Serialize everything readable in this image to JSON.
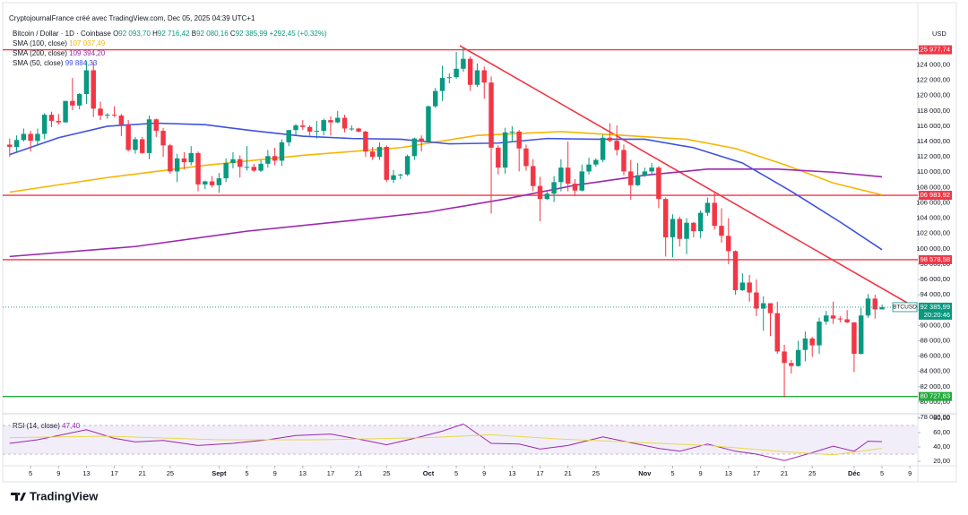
{
  "chart_data": {
    "type": "candlestick",
    "title": "CryptojournalFrance créé avec TradingView.com, Dec 05, 2025 04:39 UTC+1",
    "symbol": "Bitcoin / Dollar · 1D · Coinbase",
    "ohlc_legend": [
      {
        "label": "O",
        "value": "92 093,70"
      },
      {
        "label": "H",
        "value": "92 716,42"
      },
      {
        "label": "B",
        "value": "92 080,16"
      },
      {
        "label": "C",
        "value": "92 385,99"
      }
    ],
    "change": "+292,45 (+0,32%)",
    "currency": "USD",
    "brand": "TradingView",
    "up_color": "#089981",
    "down_color": "#f23645",
    "x": [
      "2025-08-02",
      "2025-08-03",
      "2025-08-04",
      "2025-08-05",
      "2025-08-06",
      "2025-08-07",
      "2025-08-08",
      "2025-08-09",
      "2025-08-10",
      "2025-08-11",
      "2025-08-12",
      "2025-08-13",
      "2025-08-14",
      "2025-08-15",
      "2025-08-16",
      "2025-08-17",
      "2025-08-18",
      "2025-08-19",
      "2025-08-20",
      "2025-08-21",
      "2025-08-22",
      "2025-08-23",
      "2025-08-24",
      "2025-08-25",
      "2025-08-26",
      "2025-08-27",
      "2025-08-28",
      "2025-08-29",
      "2025-08-30",
      "2025-08-31",
      "2025-09-01",
      "2025-09-02",
      "2025-09-03",
      "2025-09-04",
      "2025-09-05",
      "2025-09-06",
      "2025-09-07",
      "2025-09-08",
      "2025-09-09",
      "2025-09-10",
      "2025-09-11",
      "2025-09-12",
      "2025-09-13",
      "2025-09-14",
      "2025-09-15",
      "2025-09-16",
      "2025-09-17",
      "2025-09-18",
      "2025-09-19",
      "2025-09-20",
      "2025-09-21",
      "2025-09-22",
      "2025-09-23",
      "2025-09-24",
      "2025-09-25",
      "2025-09-26",
      "2025-09-27",
      "2025-09-28",
      "2025-09-29",
      "2025-09-30",
      "2025-10-01",
      "2025-10-02",
      "2025-10-03",
      "2025-10-04",
      "2025-10-05",
      "2025-10-06",
      "2025-10-07",
      "2025-10-08",
      "2025-10-09",
      "2025-10-10",
      "2025-10-11",
      "2025-10-12",
      "2025-10-13",
      "2025-10-14",
      "2025-10-15",
      "2025-10-16",
      "2025-10-17",
      "2025-10-18",
      "2025-10-19",
      "2025-10-20",
      "2025-10-21",
      "2025-10-22",
      "2025-10-23",
      "2025-10-24",
      "2025-10-25",
      "2025-10-26",
      "2025-10-27",
      "2025-10-28",
      "2025-10-29",
      "2025-10-30",
      "2025-10-31",
      "2025-11-01",
      "2025-11-02",
      "2025-11-03",
      "2025-11-04",
      "2025-11-05",
      "2025-11-06",
      "2025-11-07",
      "2025-11-08",
      "2025-11-09",
      "2025-11-10",
      "2025-11-11",
      "2025-11-12",
      "2025-11-13",
      "2025-11-14",
      "2025-11-15",
      "2025-11-16",
      "2025-11-17",
      "2025-11-18",
      "2025-11-19",
      "2025-11-20",
      "2025-11-21",
      "2025-11-22",
      "2025-11-23",
      "2025-11-24",
      "2025-11-25",
      "2025-11-26",
      "2025-11-27",
      "2025-11-28",
      "2025-11-29",
      "2025-11-30",
      "2025-12-01",
      "2025-12-02",
      "2025-12-03",
      "2025-12-04",
      "2025-12-05"
    ],
    "open": [
      113600,
      113300,
      114200,
      115000,
      114100,
      115000,
      117500,
      116700,
      116500,
      119300,
      118700,
      120200,
      123300,
      118300,
      117400,
      117500,
      117400,
      116200,
      112900,
      114300,
      112500,
      116900,
      115400,
      113500,
      110100,
      111800,
      111300,
      112500,
      108400,
      108800,
      108300,
      109200,
      111200,
      111700,
      110700,
      110700,
      110200,
      111100,
      112100,
      111500,
      113900,
      115500,
      116100,
      115900,
      115300,
      115400,
      116800,
      116500,
      117100,
      115700,
      115700,
      115300,
      112700,
      112000,
      113300,
      109000,
      109600,
      109700,
      112100,
      114400,
      114000,
      118600,
      120600,
      122300,
      122400,
      123500,
      124800,
      121400,
      123300,
      121700,
      113200,
      110600,
      115200,
      115300,
      113100,
      110800,
      108200,
      106500,
      107200,
      108700,
      110600,
      108500,
      107600,
      110100,
      111000,
      111600,
      114500,
      114100,
      112900,
      110100,
      108300,
      109600,
      110100,
      110600,
      106500,
      101500,
      103900,
      101300,
      103400,
      102300,
      104700,
      106000,
      103000,
      101700,
      99700,
      94600,
      95600,
      94300,
      92200,
      92900,
      91600,
      86600,
      85100,
      84700,
      86800,
      88300,
      87400,
      90500,
      91300,
      90900,
      90800,
      90400,
      86300,
      91300,
      93500,
      92093.7
    ],
    "high": [
      114400,
      114800,
      115700,
      115400,
      115700,
      117700,
      117900,
      117600,
      119300,
      122300,
      120300,
      124500,
      124400,
      119200,
      117700,
      118600,
      117600,
      116800,
      114600,
      114600,
      117400,
      117000,
      115800,
      113700,
      112400,
      112600,
      113400,
      112700,
      108900,
      109500,
      109900,
      111800,
      112600,
      112200,
      113400,
      111100,
      111600,
      112900,
      113200,
      114300,
      115500,
      116300,
      116800,
      116100,
      116700,
      117000,
      117300,
      118000,
      117500,
      116100,
      115800,
      115400,
      113300,
      113900,
      113500,
      110300,
      109800,
      112300,
      114500,
      114800,
      118700,
      121000,
      123900,
      122900,
      125700,
      126200,
      125100,
      124200,
      123800,
      122500,
      113500,
      115800,
      116000,
      115500,
      113600,
      111700,
      109400,
      107500,
      109500,
      111700,
      114000,
      109100,
      111000,
      111900,
      111800,
      114900,
      116400,
      116100,
      113600,
      111600,
      111200,
      110600,
      111200,
      110800,
      106700,
      104500,
      104200,
      104000,
      103500,
      105000,
      106700,
      107400,
      105300,
      104000,
      99800,
      96800,
      96600,
      96000,
      93800,
      92900,
      93100,
      87500,
      85500,
      88000,
      89200,
      88500,
      91000,
      91900,
      93100,
      91200,
      92000,
      90400,
      92300,
      94100,
      94000,
      92716.42
    ],
    "low": [
      112000,
      112700,
      114000,
      112700,
      113400,
      114300,
      115900,
      116200,
      116500,
      118100,
      118200,
      118900,
      117200,
      116800,
      117000,
      117200,
      114700,
      112700,
      112400,
      112400,
      111700,
      114600,
      112000,
      109800,
      108700,
      110400,
      110900,
      107500,
      107800,
      108000,
      107300,
      108700,
      110500,
      109300,
      110200,
      110000,
      110000,
      110600,
      110900,
      110800,
      113400,
      114800,
      115500,
      114800,
      114400,
      114800,
      114800,
      116400,
      115200,
      115400,
      115200,
      112000,
      111600,
      111600,
      108700,
      108600,
      109100,
      109500,
      111600,
      112700,
      113900,
      118400,
      119300,
      121600,
      122200,
      123100,
      120600,
      121100,
      119600,
      104600,
      109700,
      109800,
      113900,
      110100,
      110200,
      107500,
      103600,
      106400,
      106100,
      107500,
      107500,
      106900,
      107500,
      109700,
      110700,
      111300,
      113900,
      112200,
      109600,
      106400,
      108200,
      109400,
      109600,
      105300,
      99000,
      98900,
      100300,
      99300,
      101500,
      101400,
      104300,
      102500,
      100800,
      98000,
      94000,
      94500,
      93100,
      91200,
      89300,
      88600,
      86300,
      80600,
      83700,
      84600,
      85300,
      85900,
      86300,
      90100,
      90200,
      90400,
      90300,
      83900,
      86200,
      91000,
      90900,
      92080.16
    ],
    "close": [
      113300,
      114200,
      115000,
      114100,
      115000,
      117500,
      116700,
      116500,
      119300,
      118700,
      120200,
      123300,
      118300,
      117400,
      117500,
      117400,
      116200,
      112900,
      114300,
      112500,
      116900,
      115400,
      113500,
      110100,
      111800,
      111300,
      112500,
      108400,
      108800,
      108300,
      109200,
      111200,
      111700,
      110700,
      110700,
      110200,
      111100,
      112100,
      111500,
      113900,
      115500,
      116100,
      115900,
      115300,
      115400,
      116800,
      116500,
      117100,
      115700,
      115700,
      115300,
      112700,
      112000,
      113300,
      109000,
      109600,
      109700,
      112100,
      114400,
      114000,
      118600,
      120600,
      122300,
      122400,
      123500,
      124800,
      121400,
      123300,
      121700,
      113200,
      110600,
      115200,
      115300,
      113100,
      110800,
      108200,
      106500,
      107200,
      108700,
      110600,
      108500,
      107600,
      110100,
      111000,
      111600,
      114500,
      114100,
      112900,
      110100,
      108300,
      109600,
      110100,
      110600,
      106500,
      101500,
      103900,
      101300,
      103400,
      102300,
      104700,
      106000,
      103000,
      101700,
      99700,
      94600,
      95600,
      94300,
      92200,
      92900,
      91600,
      86600,
      85100,
      84700,
      86800,
      88300,
      87400,
      90500,
      91300,
      90900,
      90800,
      90400,
      86300,
      91300,
      93500,
      92100,
      92385.99
    ],
    "xlim": [
      "2025-08-01",
      "2025-12-10"
    ],
    "xticks": [
      {
        "value": "2025-08-05",
        "label": "5"
      },
      {
        "value": "2025-08-09",
        "label": "9"
      },
      {
        "value": "2025-08-13",
        "label": "13"
      },
      {
        "value": "2025-08-17",
        "label": "17"
      },
      {
        "value": "2025-08-21",
        "label": "21"
      },
      {
        "value": "2025-08-25",
        "label": "25"
      },
      {
        "value": "2025-09-01",
        "label": "Sept"
      },
      {
        "value": "2025-09-05",
        "label": "5"
      },
      {
        "value": "2025-09-09",
        "label": "9"
      },
      {
        "value": "2025-09-13",
        "label": "13"
      },
      {
        "value": "2025-09-17",
        "label": "17"
      },
      {
        "value": "2025-09-21",
        "label": "21"
      },
      {
        "value": "2025-09-25",
        "label": "25"
      },
      {
        "value": "2025-10-01",
        "label": "Oct"
      },
      {
        "value": "2025-10-05",
        "label": "5"
      },
      {
        "value": "2025-10-09",
        "label": "9"
      },
      {
        "value": "2025-10-13",
        "label": "13"
      },
      {
        "value": "2025-10-17",
        "label": "17"
      },
      {
        "value": "2025-10-21",
        "label": "21"
      },
      {
        "value": "2025-10-25",
        "label": "25"
      },
      {
        "value": "2025-11-01",
        "label": "Nov"
      },
      {
        "value": "2025-11-05",
        "label": "5"
      },
      {
        "value": "2025-11-09",
        "label": "9"
      },
      {
        "value": "2025-11-13",
        "label": "13"
      },
      {
        "value": "2025-11-17",
        "label": "17"
      },
      {
        "value": "2025-11-21",
        "label": "21"
      },
      {
        "value": "2025-11-25",
        "label": "25"
      },
      {
        "value": "2025-12-01",
        "label": "Déc"
      },
      {
        "value": "2025-12-05",
        "label": "5"
      },
      {
        "value": "2025-12-09",
        "label": "9"
      }
    ],
    "ylim": [
      78000,
      128500
    ],
    "yticks": [
      {
        "value": 78000,
        "label": "78 000,00"
      },
      {
        "value": 80000,
        "label": "80 000,00"
      },
      {
        "value": 82000,
        "label": "82 000,00"
      },
      {
        "value": 84000,
        "label": "84 000,00"
      },
      {
        "value": 86000,
        "label": "86 000,00"
      },
      {
        "value": 88000,
        "label": "88 000,00"
      },
      {
        "value": 90000,
        "label": "90 000,00"
      },
      {
        "value": 92000,
        "label": "92 000,00"
      },
      {
        "value": 94000,
        "label": "94 000,00"
      },
      {
        "value": 96000,
        "label": "96 000,00"
      },
      {
        "value": 98000,
        "label": "98 000,00"
      },
      {
        "value": 100000,
        "label": "100 000,00"
      },
      {
        "value": 102000,
        "label": "102 000,00"
      },
      {
        "value": 104000,
        "label": "104 000,00"
      },
      {
        "value": 106000,
        "label": "106 000,00"
      },
      {
        "value": 108000,
        "label": "108 000,00"
      },
      {
        "value": 110000,
        "label": "110 000,00"
      },
      {
        "value": 112000,
        "label": "112 000,00"
      },
      {
        "value": 114000,
        "label": "114 000,00"
      },
      {
        "value": 116000,
        "label": "116 000,00"
      },
      {
        "value": 118000,
        "label": "118 000,00"
      },
      {
        "value": 120000,
        "label": "120 000,00"
      },
      {
        "value": 122000,
        "label": "122 000,00"
      },
      {
        "value": 124000,
        "label": "124 000,00"
      }
    ],
    "grid": false,
    "indicators": [
      {
        "name": "SMA (100, close)",
        "value_label": "107 037,49",
        "color": "#f7b500",
        "x": [
          "2025-08-02",
          "2025-08-16",
          "2025-08-30",
          "2025-09-13",
          "2025-09-27",
          "2025-10-08",
          "2025-10-20",
          "2025-10-29",
          "2025-11-07",
          "2025-11-14",
          "2025-11-21",
          "2025-11-28",
          "2025-12-05"
        ],
        "values": [
          107400,
          109300,
          110900,
          112200,
          113200,
          114800,
          115300,
          114800,
          114300,
          113100,
          111000,
          108600,
          107037.49
        ]
      },
      {
        "name": "SMA (200, close)",
        "value_label": "109 394,20",
        "color": "#9c27b0",
        "x": [
          "2025-08-02",
          "2025-08-20",
          "2025-09-05",
          "2025-09-20",
          "2025-10-01",
          "2025-10-12",
          "2025-10-22",
          "2025-11-01",
          "2025-11-10",
          "2025-11-20",
          "2025-11-28",
          "2025-12-05"
        ],
        "values": [
          99000,
          100300,
          102300,
          103700,
          104800,
          106500,
          108300,
          109600,
          110400,
          110400,
          110000,
          109394.2
        ]
      },
      {
        "name": "SMA (50, close)",
        "value_label": "99 884,33",
        "color": "#3f51e0",
        "x": [
          "2025-08-02",
          "2025-08-09",
          "2025-08-16",
          "2025-08-23",
          "2025-08-30",
          "2025-09-06",
          "2025-09-13",
          "2025-09-20",
          "2025-09-27",
          "2025-10-04",
          "2025-10-11",
          "2025-10-18",
          "2025-10-25",
          "2025-11-01",
          "2025-11-08",
          "2025-11-15",
          "2025-11-22",
          "2025-11-29",
          "2025-12-05"
        ],
        "values": [
          112300,
          114500,
          116000,
          116400,
          116200,
          115400,
          114700,
          114400,
          114300,
          113700,
          113800,
          114400,
          114300,
          114300,
          113200,
          111200,
          107500,
          103500,
          99884.33
        ]
      }
    ],
    "levels": [
      {
        "value": 125977.74,
        "label": "125 977,74",
        "color": "#f23645"
      },
      {
        "value": 106983.92,
        "label": "106 983,92",
        "color": "#f23645"
      },
      {
        "value": 98578.58,
        "label": "98 578,58",
        "color": "#f23645"
      },
      {
        "value": 80727.83,
        "label": "80 727,83",
        "color": "#22ab3c"
      }
    ],
    "last_price": {
      "symbol": "BTCUSD",
      "value": 92385.99,
      "label": "92 385,99",
      "countdown": "20:20:46",
      "color": "#089981"
    },
    "rsi": {
      "name": "RSI (14, close)",
      "value_label": "47,40",
      "ylim": [
        15,
        85
      ],
      "yticks": [
        {
          "value": 20,
          "label": "20,00"
        },
        {
          "value": 40,
          "label": "40,00"
        },
        {
          "value": 60,
          "label": "60,00"
        },
        {
          "value": 80,
          "label": "80,00"
        }
      ],
      "band": [
        30,
        70
      ],
      "series": [
        {
          "color": "#9c27b0",
          "x": [
            "2025-08-02",
            "2025-08-06",
            "2025-08-09",
            "2025-08-13",
            "2025-08-17",
            "2025-08-20",
            "2025-08-24",
            "2025-08-29",
            "2025-09-03",
            "2025-09-08",
            "2025-09-12",
            "2025-09-17",
            "2025-09-22",
            "2025-09-25",
            "2025-09-29",
            "2025-10-03",
            "2025-10-06",
            "2025-10-10",
            "2025-10-14",
            "2025-10-17",
            "2025-10-21",
            "2025-10-26",
            "2025-10-30",
            "2025-11-03",
            "2025-11-06",
            "2025-11-10",
            "2025-11-14",
            "2025-11-17",
            "2025-11-21",
            "2025-11-25",
            "2025-11-28",
            "2025-12-01",
            "2025-12-03",
            "2025-12-05"
          ],
          "values": [
            45,
            50,
            56,
            64,
            52,
            47,
            49,
            42,
            45,
            50,
            56,
            58,
            49,
            43,
            52,
            62,
            72,
            45,
            44,
            37,
            42,
            54,
            46,
            38,
            34,
            44,
            34,
            30,
            21,
            32,
            41,
            34,
            48,
            47.4
          ]
        },
        {
          "color": "#e8d84a",
          "x": [
            "2025-08-02",
            "2025-08-16",
            "2025-09-01",
            "2025-09-15",
            "2025-10-01",
            "2025-10-10",
            "2025-10-20",
            "2025-11-01",
            "2025-11-10",
            "2025-11-20",
            "2025-11-28",
            "2025-12-05"
          ],
          "values": [
            53,
            55,
            50,
            50,
            53,
            57,
            51,
            46,
            42,
            34,
            29,
            38
          ]
        }
      ]
    }
  }
}
